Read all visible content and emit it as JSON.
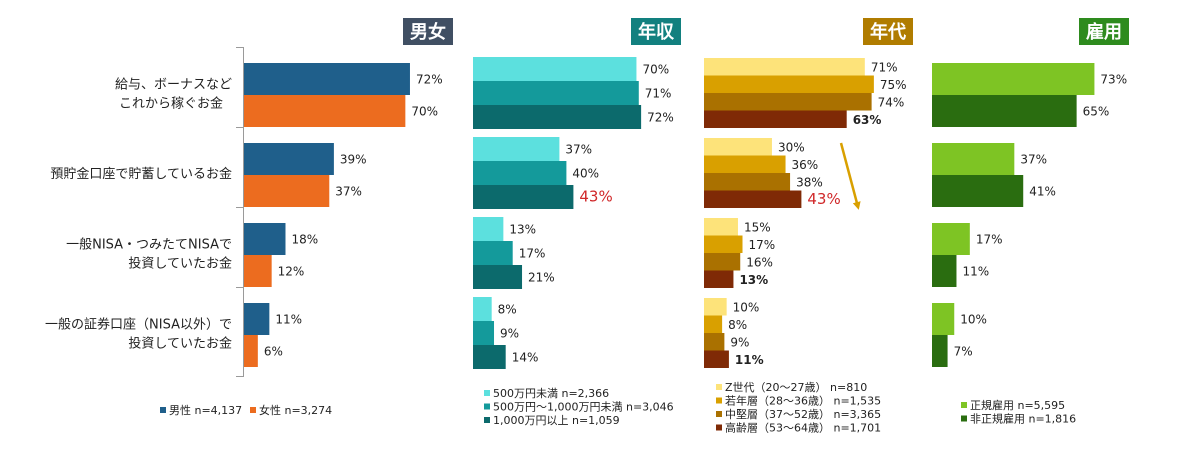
{
  "chart_data": [
    {
      "type": "bar",
      "title": "男女",
      "orientation": "horizontal",
      "categories": [
        "給与、ボーナスなど\nこれから稼ぐお金",
        "預貯金口座で貯蓄しているお金",
        "一般NISA・つみたてNISAで\n投資していたお金",
        "一般の証券口座（NISA以外）で\n投資していたお金"
      ],
      "series": [
        {
          "name": "男性 n=4,137",
          "color": "#1f5f8b",
          "values": [
            72,
            39,
            18,
            11
          ]
        },
        {
          "name": "女性 n=3,274",
          "color": "#ec6c1f",
          "values": [
            70,
            37,
            12,
            6
          ]
        }
      ],
      "value_labels": [
        [
          "72%",
          "39%",
          "18%",
          "11%"
        ],
        [
          "70%",
          "37%",
          "12%",
          "6%"
        ]
      ],
      "xlim": [
        0,
        100
      ]
    },
    {
      "type": "bar",
      "title": "年収",
      "orientation": "horizontal",
      "categories": [
        "給与、ボーナスなど\nこれから稼ぐお金",
        "預貯金口座で貯蓄しているお金",
        "一般NISA・つみたてNISAで\n投資していたお金",
        "一般の証券口座（NISA以外）で\n投資していたお金"
      ],
      "series": [
        {
          "name": "500万円未満 n=2,366",
          "color": "#5ce0de",
          "values": [
            70,
            37,
            13,
            8
          ]
        },
        {
          "name": "500万円～1,000万円未満 n=3,046",
          "color": "#149a9b",
          "values": [
            71,
            40,
            17,
            9
          ]
        },
        {
          "name": "1,000万円以上 n=1,059",
          "color": "#0c6a6c",
          "values": [
            72,
            43,
            21,
            14
          ]
        }
      ],
      "value_labels": [
        [
          "70%",
          "37%",
          "13%",
          "8%"
        ],
        [
          "71%",
          "40%",
          "17%",
          "9%"
        ],
        [
          "72%",
          "43%",
          "21%",
          "14%"
        ]
      ],
      "xlim": [
        0,
        100
      ]
    },
    {
      "type": "bar",
      "title": "年代",
      "orientation": "horizontal",
      "categories": [
        "給与、ボーナスなど\nこれから稼ぐお金",
        "預貯金口座で貯蓄しているお金",
        "一般NISA・つみたてNISAで\n投資していたお金",
        "一般の証券口座（NISA以外）で\n投資していたお金"
      ],
      "series": [
        {
          "name": "Z世代（20～27歳） n=810",
          "color": "#fde37a",
          "values": [
            71,
            30,
            15,
            10
          ]
        },
        {
          "name": "若年層（28～36歳） n=1,535",
          "color": "#d9a000",
          "values": [
            75,
            36,
            17,
            8
          ]
        },
        {
          "name": "中堅層（37～52歳） n=3,365",
          "color": "#aa7100",
          "values": [
            74,
            38,
            16,
            9
          ]
        },
        {
          "name": "高齢層（53～64歳） n=1,701",
          "color": "#7f2a06",
          "values": [
            63,
            43,
            13,
            11
          ]
        }
      ],
      "value_labels": [
        [
          "71%",
          "30%",
          "15%",
          "10%"
        ],
        [
          "75%",
          "36%",
          "17%",
          "8%"
        ],
        [
          "74%",
          "38%",
          "16%",
          "9%"
        ],
        [
          "63%",
          "43%",
          "13%",
          "11%"
        ]
      ],
      "annotations": [
        "trend arrow from 30% down to 43% (預貯金口座)"
      ],
      "xlim": [
        0,
        100
      ]
    },
    {
      "type": "bar",
      "title": "雇用",
      "orientation": "horizontal",
      "categories": [
        "給与、ボーナスなど\nこれから稼ぐお金",
        "預貯金口座で貯蓄しているお金",
        "一般NISA・つみたてNISAで\n投資していたお金",
        "一般の証券口座（NISA以外）で\n投資していたお金"
      ],
      "series": [
        {
          "name": "正規雇用 n=5,595",
          "color": "#7ec424",
          "values": [
            73,
            37,
            17,
            10
          ]
        },
        {
          "name": "非正規雇用 n=1,816",
          "color": "#2a6d10",
          "values": [
            65,
            41,
            11,
            7
          ]
        }
      ],
      "value_labels": [
        [
          "73%",
          "37%",
          "17%",
          "10%"
        ],
        [
          "65%",
          "41%",
          "11%",
          "7%"
        ]
      ],
      "xlim": [
        0,
        100
      ]
    }
  ],
  "style": {
    "title_colors": [
      "#404f63",
      "#12807f",
      "#b07c00",
      "#2e8b1e"
    ],
    "highlight_color": "#d0282a",
    "arrow_color": "#d9a000",
    "axis_color": "#9a9a9a"
  }
}
